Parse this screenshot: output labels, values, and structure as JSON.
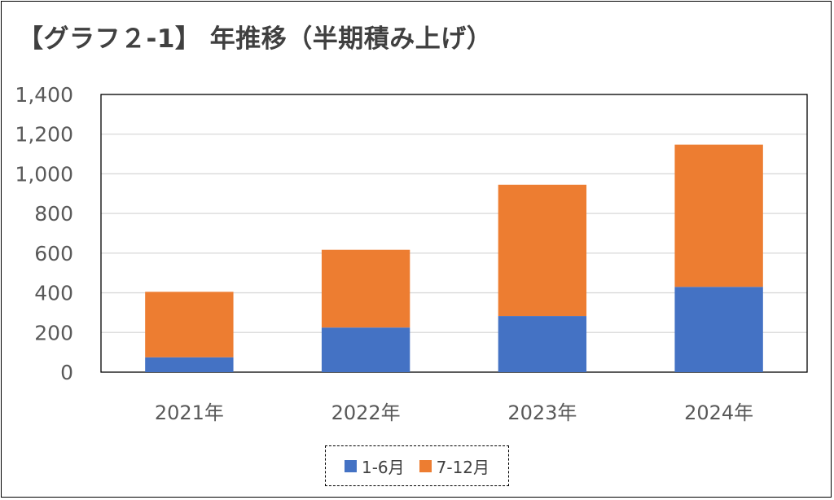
{
  "title": "【グラフ２-1】 年推移（半期積み上げ）",
  "colors": {
    "h1": "#4472C4",
    "h2": "#ED7D31",
    "grid": "#D9D9D9",
    "axis": "#000000"
  },
  "chart_data": {
    "type": "bar",
    "stacked": true,
    "categories": [
      "2021年",
      "2022年",
      "2023年",
      "2024年"
    ],
    "series": [
      {
        "name": "1-6月",
        "values": [
          75,
          225,
          283,
          430
        ]
      },
      {
        "name": "7-12月",
        "values": [
          330,
          392,
          662,
          717
        ]
      }
    ],
    "ylim": [
      0,
      1400
    ],
    "yticks": [
      0,
      200,
      400,
      600,
      800,
      1000,
      1200,
      1400
    ],
    "ytick_labels": [
      "0",
      "200",
      "400",
      "600",
      "800",
      "1,000",
      "1,200",
      "1,400"
    ],
    "grid": true,
    "legend_position": "bottom"
  }
}
